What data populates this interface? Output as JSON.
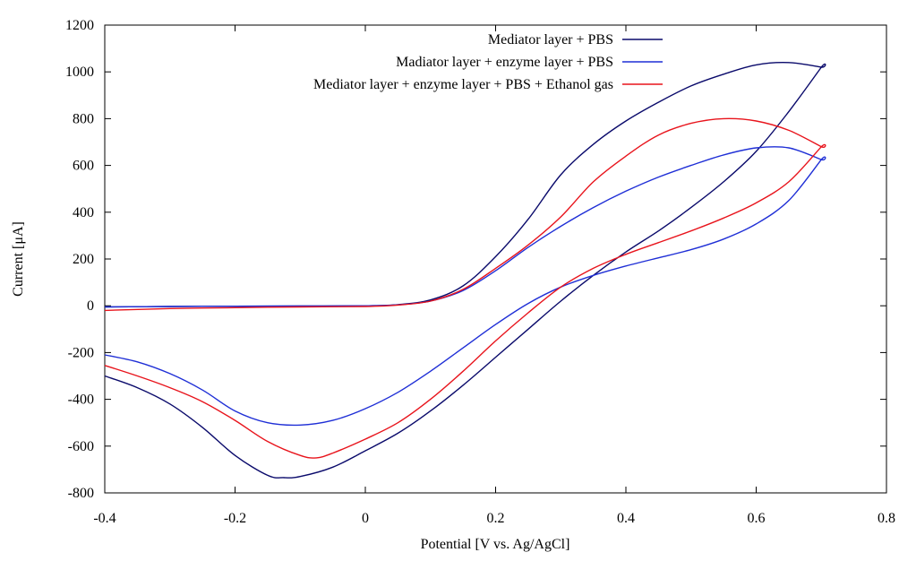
{
  "chart_data": {
    "type": "line",
    "title": "",
    "xlabel": "Potential [V vs. Ag/AgCl]",
    "ylabel": "Current [μA]",
    "xlim": [
      -0.4,
      0.8
    ],
    "ylim": [
      -800,
      1200
    ],
    "xticks": [
      "-0.4",
      "-0.2",
      "0",
      "0.2",
      "0.4",
      "0.6",
      "0.8"
    ],
    "yticks": [
      "-800",
      "-600",
      "-400",
      "-200",
      "0",
      "200",
      "400",
      "600",
      "800",
      "1000",
      "1200"
    ],
    "xtick_values": [
      -0.4,
      -0.2,
      0,
      0.2,
      0.4,
      0.6,
      0.8
    ],
    "ytick_values": [
      -800,
      -600,
      -400,
      -200,
      0,
      200,
      400,
      600,
      800,
      1000,
      1200
    ],
    "grid": false,
    "legend_position": "top-right",
    "series": [
      {
        "name": "Mediator layer + PBS",
        "color": "#0a0a6b",
        "x": [
          -0.4,
          -0.3,
          -0.2,
          -0.1,
          0.0,
          0.05,
          0.1,
          0.15,
          0.2,
          0.25,
          0.3,
          0.35,
          0.4,
          0.45,
          0.5,
          0.55,
          0.6,
          0.65,
          0.7,
          0.7,
          0.65,
          0.6,
          0.55,
          0.5,
          0.45,
          0.4,
          0.35,
          0.3,
          0.25,
          0.2,
          0.15,
          0.1,
          0.05,
          0.0,
          -0.05,
          -0.1,
          -0.125,
          -0.15,
          -0.2,
          -0.25,
          -0.3,
          -0.35,
          -0.4
        ],
        "y": [
          -5,
          -3,
          -2,
          -1,
          0,
          5,
          25,
          85,
          210,
          370,
          560,
          690,
          790,
          870,
          940,
          990,
          1030,
          1040,
          1020,
          1020,
          830,
          660,
          530,
          420,
          320,
          230,
          130,
          20,
          -100,
          -220,
          -340,
          -450,
          -545,
          -620,
          -690,
          -730,
          -735,
          -725,
          -640,
          -520,
          -420,
          -350,
          -300
        ]
      },
      {
        "name": "Madiator layer + enzyme layer + PBS",
        "color": "#1f2fd6",
        "x": [
          -0.4,
          -0.3,
          -0.2,
          -0.1,
          0.0,
          0.05,
          0.1,
          0.15,
          0.2,
          0.25,
          0.3,
          0.35,
          0.4,
          0.45,
          0.5,
          0.55,
          0.6,
          0.65,
          0.7,
          0.7,
          0.65,
          0.6,
          0.55,
          0.5,
          0.45,
          0.4,
          0.35,
          0.3,
          0.25,
          0.2,
          0.15,
          0.1,
          0.05,
          0.0,
          -0.05,
          -0.1,
          -0.15,
          -0.2,
          -0.25,
          -0.3,
          -0.35,
          -0.4
        ],
        "y": [
          -5,
          -3,
          -2,
          -1,
          0,
          4,
          20,
          65,
          150,
          250,
          340,
          420,
          490,
          550,
          600,
          645,
          675,
          675,
          625,
          625,
          450,
          350,
          285,
          240,
          205,
          170,
          130,
          80,
          10,
          -80,
          -180,
          -280,
          -370,
          -440,
          -490,
          -510,
          -500,
          -450,
          -360,
          -290,
          -240,
          -210
        ]
      },
      {
        "name": "Mediator layer + enzyme layer + PBS + Ethanol gas",
        "color": "#e8141c",
        "x": [
          -0.4,
          -0.3,
          -0.2,
          -0.1,
          0.0,
          0.05,
          0.1,
          0.15,
          0.2,
          0.25,
          0.3,
          0.35,
          0.4,
          0.45,
          0.5,
          0.55,
          0.6,
          0.65,
          0.7,
          0.7,
          0.65,
          0.6,
          0.55,
          0.5,
          0.45,
          0.4,
          0.35,
          0.3,
          0.25,
          0.2,
          0.15,
          0.1,
          0.05,
          0.0,
          -0.05,
          -0.075,
          -0.1,
          -0.15,
          -0.2,
          -0.25,
          -0.3,
          -0.35,
          -0.4
        ],
        "y": [
          -20,
          -12,
          -8,
          -5,
          -3,
          3,
          20,
          70,
          160,
          260,
          380,
          530,
          640,
          730,
          780,
          800,
          790,
          750,
          680,
          680,
          530,
          440,
          375,
          320,
          270,
          220,
          160,
          80,
          -30,
          -150,
          -280,
          -400,
          -500,
          -570,
          -630,
          -650,
          -640,
          -580,
          -490,
          -410,
          -350,
          -300,
          -255
        ]
      }
    ]
  }
}
